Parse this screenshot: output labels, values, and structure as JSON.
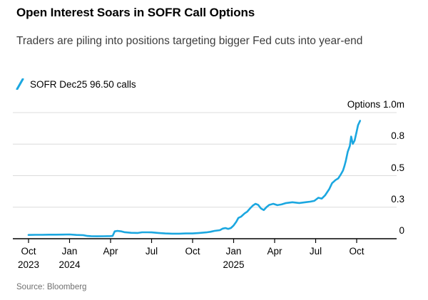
{
  "header": {
    "title": "Open Interest Soars in SOFR Call Options",
    "subtitle": "Traders are piling into positions targeting bigger Fed cuts into year-end"
  },
  "legend": {
    "items": [
      {
        "label": "SOFR Dec25 96.50 calls",
        "icon": "line-slash-icon",
        "color": "#1ba7e0"
      }
    ]
  },
  "chart_data": {
    "type": "line",
    "title": "Open Interest Soars in SOFR Call Options",
    "ylabel": "Options 1.0m",
    "unit": "millions of options",
    "series": [
      {
        "name": "SOFR Dec25 96.50 calls",
        "color": "#1ba7e0",
        "x_unit": "months since Oct 2023",
        "points": [
          [
            0,
            0.03
          ],
          [
            0.5,
            0.031
          ],
          [
            1,
            0.031
          ],
          [
            1.5,
            0.032
          ],
          [
            2,
            0.032
          ],
          [
            2.5,
            0.033
          ],
          [
            3,
            0.034
          ],
          [
            3.5,
            0.03
          ],
          [
            4,
            0.028
          ],
          [
            4.3,
            0.022
          ],
          [
            4.6,
            0.02
          ],
          [
            5,
            0.019
          ],
          [
            5.5,
            0.02
          ],
          [
            6,
            0.021
          ],
          [
            6.15,
            0.022
          ],
          [
            6.3,
            0.058
          ],
          [
            6.5,
            0.062
          ],
          [
            6.8,
            0.058
          ],
          [
            7,
            0.052
          ],
          [
            7.5,
            0.047
          ],
          [
            8,
            0.046
          ],
          [
            8.3,
            0.051
          ],
          [
            8.7,
            0.051
          ],
          [
            9,
            0.05
          ],
          [
            9.5,
            0.046
          ],
          [
            10,
            0.042
          ],
          [
            10.5,
            0.04
          ],
          [
            11,
            0.04
          ],
          [
            11.5,
            0.042
          ],
          [
            12,
            0.042
          ],
          [
            12.5,
            0.046
          ],
          [
            13,
            0.05
          ],
          [
            13.3,
            0.055
          ],
          [
            13.6,
            0.062
          ],
          [
            14,
            0.068
          ],
          [
            14.2,
            0.08
          ],
          [
            14.4,
            0.085
          ],
          [
            14.6,
            0.078
          ],
          [
            14.8,
            0.085
          ],
          [
            15,
            0.105
          ],
          [
            15.2,
            0.135
          ],
          [
            15.35,
            0.165
          ],
          [
            15.55,
            0.175
          ],
          [
            15.8,
            0.2
          ],
          [
            16,
            0.215
          ],
          [
            16.2,
            0.24
          ],
          [
            16.4,
            0.262
          ],
          [
            16.6,
            0.277
          ],
          [
            16.8,
            0.268
          ],
          [
            17,
            0.24
          ],
          [
            17.2,
            0.227
          ],
          [
            17.4,
            0.25
          ],
          [
            17.6,
            0.268
          ],
          [
            17.9,
            0.277
          ],
          [
            18.2,
            0.266
          ],
          [
            18.5,
            0.272
          ],
          [
            18.8,
            0.282
          ],
          [
            19.3,
            0.289
          ],
          [
            19.8,
            0.283
          ],
          [
            20.3,
            0.29
          ],
          [
            20.6,
            0.294
          ],
          [
            20.9,
            0.3
          ],
          [
            21.2,
            0.325
          ],
          [
            21.45,
            0.318
          ],
          [
            21.7,
            0.345
          ],
          [
            22,
            0.395
          ],
          [
            22.2,
            0.44
          ],
          [
            22.45,
            0.465
          ],
          [
            22.65,
            0.478
          ],
          [
            22.85,
            0.512
          ],
          [
            23,
            0.54
          ],
          [
            23.1,
            0.575
          ],
          [
            23.2,
            0.615
          ],
          [
            23.35,
            0.69
          ],
          [
            23.5,
            0.735
          ],
          [
            23.6,
            0.81
          ],
          [
            23.72,
            0.752
          ],
          [
            23.85,
            0.778
          ],
          [
            24,
            0.85
          ],
          [
            24.1,
            0.9
          ],
          [
            24.25,
            0.935
          ]
        ]
      }
    ],
    "x": {
      "range_months": [
        -1.1,
        26.9
      ],
      "ticks": [
        {
          "pos": 0,
          "label": "Oct",
          "sub": "2023"
        },
        {
          "pos": 3,
          "label": "Jan",
          "sub": "2024"
        },
        {
          "pos": 6,
          "label": "Apr"
        },
        {
          "pos": 9,
          "label": "Jul"
        },
        {
          "pos": 12,
          "label": "Oct"
        },
        {
          "pos": 15,
          "label": "Jan",
          "sub": "2025"
        },
        {
          "pos": 18,
          "label": "Apr"
        },
        {
          "pos": 21,
          "label": "Jul"
        },
        {
          "pos": 24,
          "label": "Oct"
        }
      ]
    },
    "y": {
      "range": [
        0,
        1.0
      ],
      "gridlines": [
        0,
        0.25,
        0.5,
        0.75,
        1.0
      ],
      "tick_labels": [
        {
          "value": 0,
          "label": "0"
        },
        {
          "value": 0.25,
          "label": "0.3"
        },
        {
          "value": 0.5,
          "label": "0.5"
        },
        {
          "value": 0.75,
          "label": "0.8"
        },
        {
          "value": 1.0,
          "label": "Options 1.0m"
        }
      ],
      "grid_on": true
    },
    "colors": {
      "line": "#1ba7e0",
      "grid": "#dcdcdc",
      "axis": "#000000"
    },
    "legend_position": "top-left"
  },
  "source": {
    "text": "Source: Bloomberg"
  }
}
